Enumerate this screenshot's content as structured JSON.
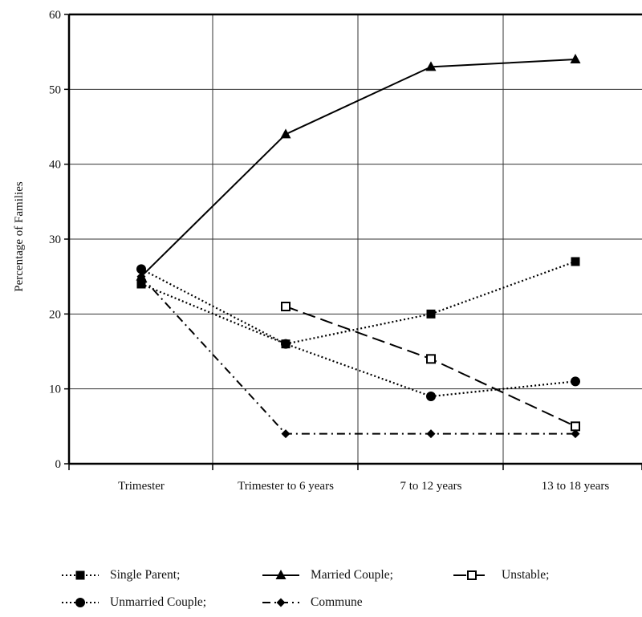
{
  "chart_data": {
    "type": "line",
    "title": "",
    "xlabel": "",
    "ylabel": "Percentage of Families",
    "categories": [
      "Trimester",
      "Trimester to 6 years",
      "7 to 12 years",
      "13 to 18 years"
    ],
    "ylim": [
      0,
      60
    ],
    "yticks": [
      0,
      10,
      20,
      30,
      40,
      50,
      60
    ],
    "grid": true,
    "legend_position": "bottom",
    "series": [
      {
        "key": "single_parent",
        "name": "Single Parent;",
        "values": [
          24,
          16,
          20,
          27
        ],
        "line_style": "dotted",
        "marker": "filled-square"
      },
      {
        "key": "married_couple",
        "name": "Married Couple;",
        "values": [
          25,
          44,
          53,
          54
        ],
        "line_style": "solid",
        "marker": "filled-triangle"
      },
      {
        "key": "unstable",
        "name": "Unstable;",
        "values": [
          null,
          21,
          14,
          5
        ],
        "line_style": "long-dash",
        "marker": "open-square"
      },
      {
        "key": "unmarried_couple",
        "name": "Unmarried Couple;",
        "values": [
          26,
          16,
          9,
          11
        ],
        "line_style": "dotted",
        "marker": "filled-circle"
      },
      {
        "key": "commune",
        "name": "Commune",
        "values": [
          25,
          4,
          4,
          4
        ],
        "line_style": "dash-dot",
        "marker": "filled-diamond"
      }
    ],
    "line_color": "#000000"
  }
}
